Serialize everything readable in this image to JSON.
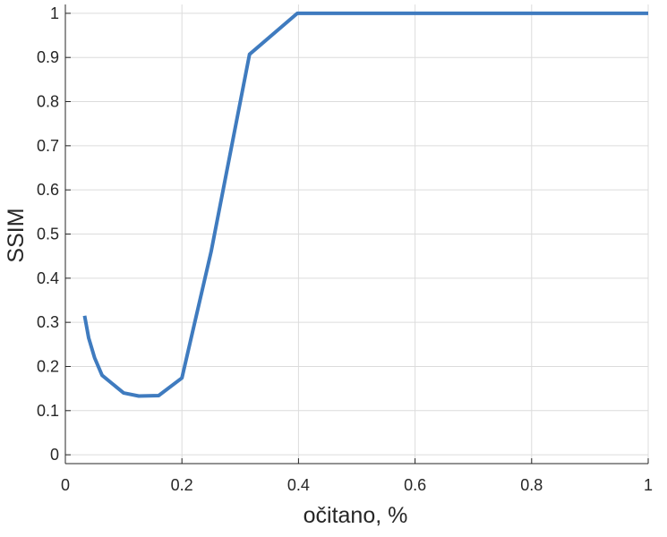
{
  "chart_data": {
    "type": "line",
    "title": "",
    "xlabel": "očitano, %",
    "ylabel": "SSIM",
    "xlim": [
      0,
      1
    ],
    "ylim": [
      -0.02,
      1.02
    ],
    "xticks": [
      0,
      0.2,
      0.4,
      0.6,
      0.8,
      1
    ],
    "xtick_labels": [
      "0",
      "0.2",
      "0.4",
      "0.6",
      "0.8",
      "1"
    ],
    "yticks": [
      0,
      0.1,
      0.2,
      0.3,
      0.4,
      0.5,
      0.6,
      0.7,
      0.8,
      0.9,
      1
    ],
    "ytick_labels": [
      "0",
      "0.1",
      "0.2",
      "0.3",
      "0.4",
      "0.5",
      "0.6",
      "0.7",
      "0.8",
      "0.9",
      "1"
    ],
    "grid": true,
    "series": [
      {
        "color": "#3f7bbf",
        "x": [
          0.033,
          0.04,
          0.05,
          0.063,
          0.1,
          0.126,
          0.16,
          0.2,
          0.25,
          0.316,
          0.398,
          0.5,
          0.6,
          0.7,
          0.8,
          0.9,
          1.0
        ],
        "y": [
          0.315,
          0.265,
          0.22,
          0.18,
          0.14,
          0.133,
          0.134,
          0.174,
          0.46,
          0.907,
          1.0,
          1.0,
          1.0,
          1.0,
          1.0,
          1.0,
          1.0
        ]
      }
    ]
  }
}
